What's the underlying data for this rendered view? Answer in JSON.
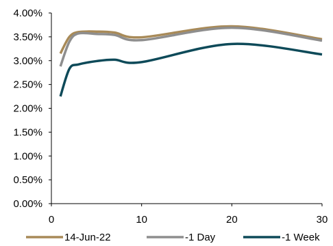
{
  "chart_data": {
    "type": "line",
    "title": "",
    "xlabel": "",
    "ylabel": "",
    "xlim": [
      0,
      30
    ],
    "ylim": [
      0,
      4
    ],
    "x_ticks": [
      0,
      10,
      20,
      30
    ],
    "x_tick_labels": [
      "0",
      "10",
      "20",
      "30"
    ],
    "y_ticks": [
      0,
      0.5,
      1,
      1.5,
      2,
      2.5,
      3,
      3.5,
      4
    ],
    "y_tick_labels": [
      "0.00%",
      "0.50%",
      "1.00%",
      "1.50%",
      "2.00%",
      "2.50%",
      "3.00%",
      "3.50%",
      "4.00%"
    ],
    "grid": false,
    "legend_position": "bottom",
    "series": [
      {
        "name": "14-Jun-22",
        "color": "#A88A58",
        "x": [
          1,
          2,
          3,
          5,
          7,
          10,
          20,
          30
        ],
        "y": [
          3.15,
          3.5,
          3.6,
          3.61,
          3.59,
          3.49,
          3.72,
          3.45
        ]
      },
      {
        "name": "-1 Day",
        "color": "#8E8E8E",
        "x": [
          1,
          2,
          3,
          5,
          7,
          10,
          20,
          30
        ],
        "y": [
          2.88,
          3.4,
          3.57,
          3.56,
          3.54,
          3.43,
          3.69,
          3.42
        ]
      },
      {
        "name": "-1 Week",
        "color": "#0E4A59",
        "x": [
          1,
          2,
          3,
          5,
          7,
          10,
          20,
          30
        ],
        "y": [
          2.25,
          2.83,
          2.92,
          2.99,
          3.02,
          2.97,
          3.35,
          3.13
        ]
      }
    ]
  }
}
